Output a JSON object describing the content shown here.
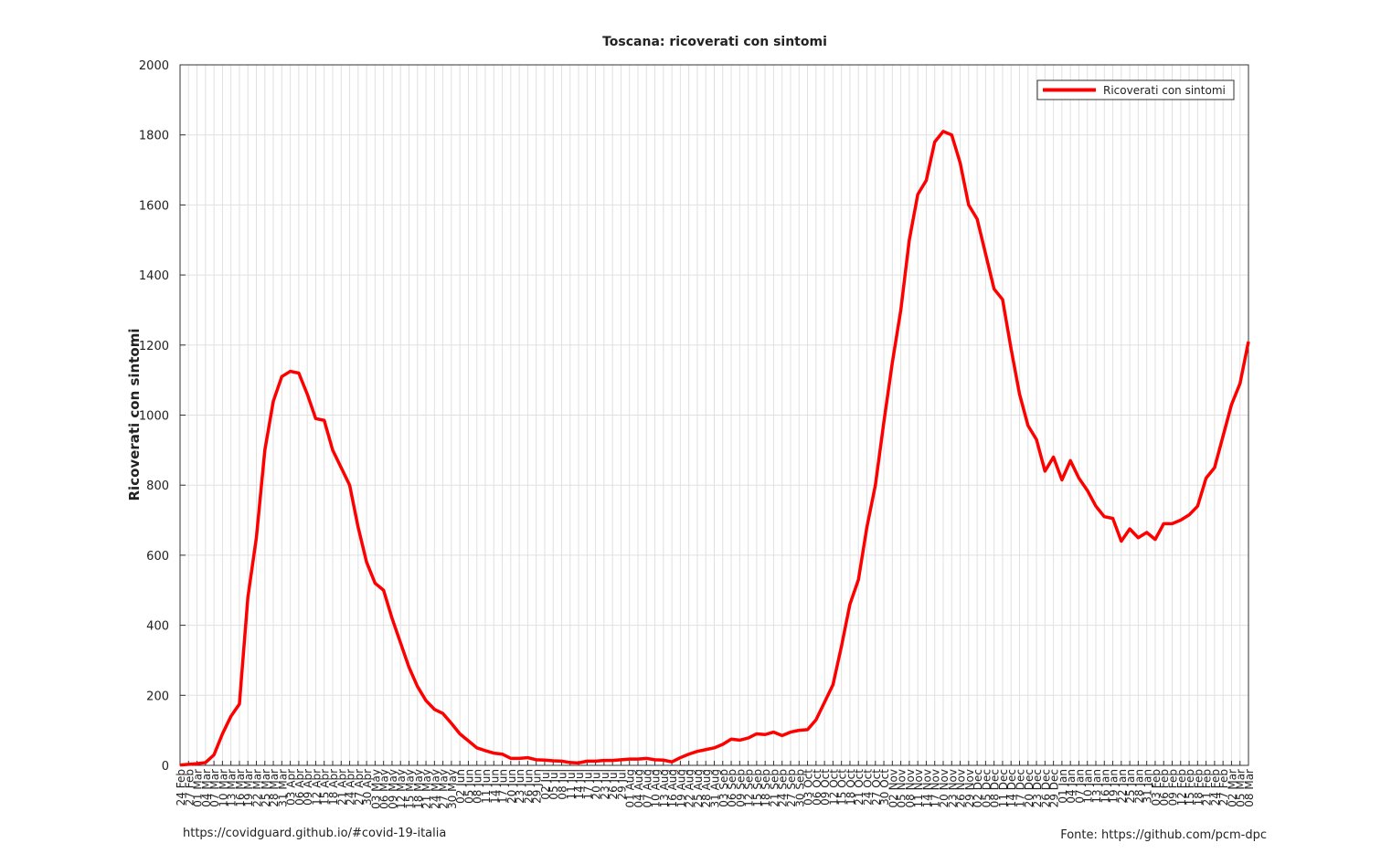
{
  "chart_data": {
    "type": "line",
    "title": "Toscana: ricoverati con sintomi",
    "y_label": "Ricoverati con sintomi",
    "categories": [
      "24 Feb",
      "27 Feb",
      "01 Mar",
      "04 Mar",
      "07 Mar",
      "10 Mar",
      "13 Mar",
      "16 Mar",
      "19 Mar",
      "22 Mar",
      "25 Mar",
      "28 Mar",
      "31 Mar",
      "03 Apr",
      "06 Apr",
      "09 Apr",
      "12 Apr",
      "15 Apr",
      "18 Apr",
      "21 Apr",
      "24 Apr",
      "27 Apr",
      "30 Apr",
      "03 May",
      "06 May",
      "09 May",
      "12 May",
      "15 May",
      "18 May",
      "21 May",
      "24 May",
      "27 May",
      "30 May",
      "02 Jun",
      "05 Jun",
      "08 Jun",
      "11 Jun",
      "14 Jun",
      "17 Jun",
      "20 Jun",
      "23 Jun",
      "26 Jun",
      "29 Jun",
      "02 Jul",
      "05 Jul",
      "08 Jul",
      "11 Jul",
      "14 Jul",
      "17 Jul",
      "20 Jul",
      "23 Jul",
      "26 Jul",
      "29 Jul",
      "01 Aug",
      "04 Aug",
      "07 Aug",
      "10 Aug",
      "13 Aug",
      "16 Aug",
      "19 Aug",
      "22 Aug",
      "25 Aug",
      "28 Aug",
      "31 Aug",
      "03 Sep",
      "06 Sep",
      "09 Sep",
      "12 Sep",
      "15 Sep",
      "18 Sep",
      "21 Sep",
      "24 Sep",
      "27 Sep",
      "30 Sep",
      "03 Oct",
      "06 Oct",
      "09 Oct",
      "12 Oct",
      "15 Oct",
      "18 Oct",
      "21 Oct",
      "24 Oct",
      "27 Oct",
      "30 Oct",
      "02 Nov",
      "05 Nov",
      "08 Nov",
      "11 Nov",
      "14 Nov",
      "17 Nov",
      "20 Nov",
      "23 Nov",
      "26 Nov",
      "29 Nov",
      "02 Dec",
      "05 Dec",
      "08 Dec",
      "11 Dec",
      "14 Dec",
      "17 Dec",
      "20 Dec",
      "23 Dec",
      "26 Dec",
      "29 Dec",
      "01 Jan",
      "04 Jan",
      "07 Jan",
      "10 Jan",
      "13 Jan",
      "16 Jan",
      "19 Jan",
      "22 Jan",
      "25 Jan",
      "28 Jan",
      "31 Jan",
      "03 Feb",
      "06 Feb",
      "09 Feb",
      "12 Feb",
      "15 Feb",
      "18 Feb",
      "21 Feb",
      "24 Feb",
      "27 Feb",
      "02 Mar",
      "05 Mar",
      "08 Mar"
    ],
    "series": [
      {
        "name": "Ricoverati con sintomi",
        "color": "#ff0000",
        "values": [
          1,
          3,
          5,
          8,
          30,
          90,
          140,
          175,
          480,
          650,
          900,
          1040,
          1110,
          1125,
          1120,
          1060,
          990,
          985,
          900,
          850,
          800,
          680,
          580,
          520,
          500,
          420,
          350,
          280,
          225,
          185,
          160,
          148,
          120,
          90,
          70,
          50,
          42,
          35,
          32,
          20,
          20,
          22,
          16,
          15,
          13,
          12,
          8,
          7,
          12,
          12,
          14,
          14,
          16,
          18,
          18,
          20,
          16,
          15,
          10,
          22,
          32,
          40,
          45,
          50,
          60,
          75,
          72,
          78,
          90,
          88,
          95,
          85,
          95,
          100,
          102,
          130,
          180,
          230,
          340,
          460,
          530,
          680,
          800,
          980,
          1150,
          1300,
          1500,
          1630,
          1670,
          1780,
          1810,
          1800,
          1720,
          1600,
          1560,
          1460,
          1360,
          1330,
          1190,
          1060,
          970,
          930,
          840,
          880,
          815,
          870,
          820,
          785,
          740,
          710,
          705,
          640,
          675,
          650,
          665,
          645,
          690,
          690,
          700,
          715,
          740,
          820,
          850,
          940,
          1030,
          1090,
          1210
        ]
      }
    ],
    "ylim": [
      0,
      2000
    ],
    "yticks": [
      0,
      200,
      400,
      600,
      800,
      1000,
      1200,
      1400,
      1600,
      1800,
      2000
    ],
    "grid": true,
    "legend": "upper right"
  },
  "footer": {
    "left": "https://covidguard.github.io/#covid-19-italia",
    "right": "Fonte: https://github.com/pcm-dpc"
  }
}
